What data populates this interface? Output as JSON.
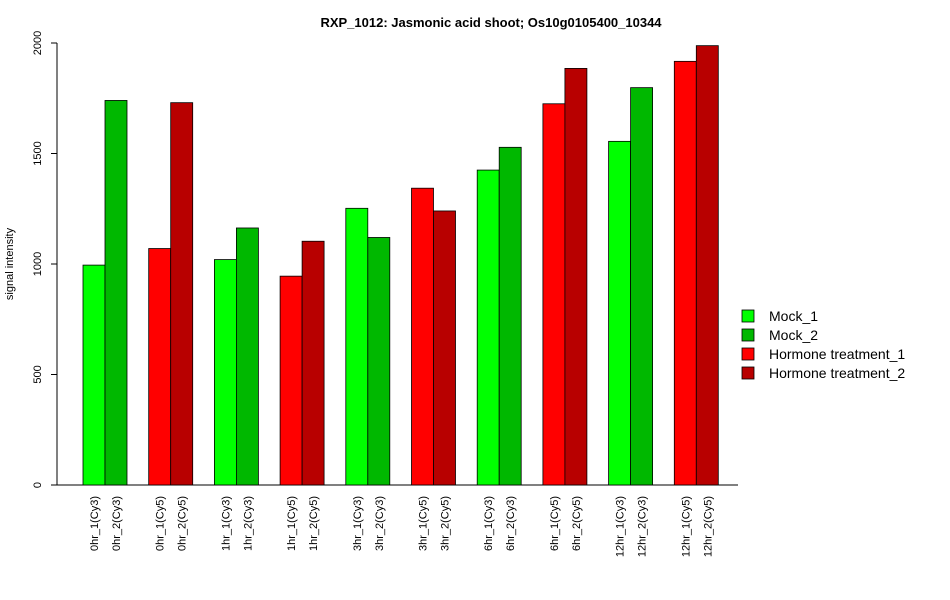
{
  "chart_data": {
    "type": "bar",
    "title": "RXP_1012: Jasmonic acid shoot; Os10g0105400_10344",
    "ylabel": "signal intensity",
    "ylim": [
      0,
      2000
    ],
    "yticks": [
      0,
      500,
      1000,
      1500,
      2000
    ],
    "groups": [
      {
        "bars": [
          {
            "label": "0hr_1(Cy3)",
            "value": 995,
            "series": "Mock_1"
          },
          {
            "label": "0hr_2(Cy3)",
            "value": 1740,
            "series": "Mock_2"
          }
        ]
      },
      {
        "bars": [
          {
            "label": "0hr_1(Cy5)",
            "value": 1070,
            "series": "Hormone treatment_1"
          },
          {
            "label": "0hr_2(Cy5)",
            "value": 1730,
            "series": "Hormone treatment_2"
          }
        ]
      },
      {
        "bars": [
          {
            "label": "1hr_1(Cy3)",
            "value": 1020,
            "series": "Mock_1"
          },
          {
            "label": "1hr_2(Cy3)",
            "value": 1163,
            "series": "Mock_2"
          }
        ]
      },
      {
        "bars": [
          {
            "label": "1hr_1(Cy5)",
            "value": 945,
            "series": "Hormone treatment_1"
          },
          {
            "label": "1hr_2(Cy5)",
            "value": 1103,
            "series": "Hormone treatment_2"
          }
        ]
      },
      {
        "bars": [
          {
            "label": "3hr_1(Cy3)",
            "value": 1252,
            "series": "Mock_1"
          },
          {
            "label": "3hr_2(Cy3)",
            "value": 1120,
            "series": "Mock_2"
          }
        ]
      },
      {
        "bars": [
          {
            "label": "3hr_1(Cy5)",
            "value": 1343,
            "series": "Hormone treatment_1"
          },
          {
            "label": "3hr_2(Cy5)",
            "value": 1240,
            "series": "Hormone treatment_2"
          }
        ]
      },
      {
        "bars": [
          {
            "label": "6hr_1(Cy3)",
            "value": 1425,
            "series": "Mock_1"
          },
          {
            "label": "6hr_2(Cy3)",
            "value": 1528,
            "series": "Mock_2"
          }
        ]
      },
      {
        "bars": [
          {
            "label": "6hr_1(Cy5)",
            "value": 1725,
            "series": "Hormone treatment_1"
          },
          {
            "label": "6hr_2(Cy5)",
            "value": 1885,
            "series": "Hormone treatment_2"
          }
        ]
      },
      {
        "bars": [
          {
            "label": "12hr_1(Cy3)",
            "value": 1555,
            "series": "Mock_1"
          },
          {
            "label": "12hr_2(Cy3)",
            "value": 1798,
            "series": "Mock_2"
          }
        ]
      },
      {
        "bars": [
          {
            "label": "12hr_1(Cy5)",
            "value": 1917,
            "series": "Hormone treatment_1"
          },
          {
            "label": "12hr_2(Cy5)",
            "value": 1988,
            "series": "Hormone treatment_2"
          }
        ]
      }
    ],
    "legend": {
      "position": "right",
      "entries": [
        {
          "name": "Mock_1",
          "color": "#00ff00"
        },
        {
          "name": "Mock_2",
          "color": "#00b800"
        },
        {
          "name": "Hormone treatment_1",
          "color": "#ff0000"
        },
        {
          "name": "Hormone treatment_2",
          "color": "#b80000"
        }
      ]
    }
  }
}
